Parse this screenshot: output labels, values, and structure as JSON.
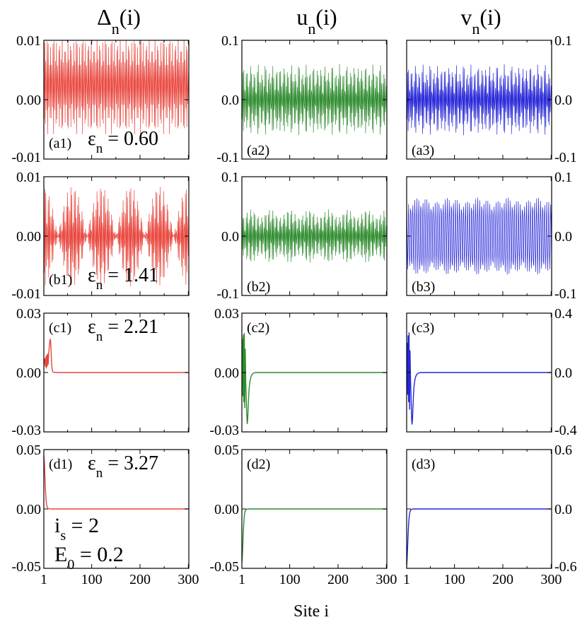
{
  "colors": {
    "delta": "#e8453c",
    "u": "#2e8b2e",
    "v": "#2525d8",
    "annotation": "#8b1a1a",
    "frame": "#000000"
  },
  "column_headers": [
    {
      "base": "Δ",
      "sub": "n",
      "tail": "(i)"
    },
    {
      "base": "u",
      "sub": "n",
      "tail": "(i)"
    },
    {
      "base": "v",
      "sub": "n",
      "tail": "(i)"
    }
  ],
  "xlabel": "Site i",
  "annotation": {
    "is_base": "i",
    "is_sub": "s",
    "is_tail": " = 2",
    "E0_base": "E",
    "E0_sub": "0",
    "E0_tail": " = 0.2"
  },
  "chart_data": [
    {
      "type": "line",
      "panel": "a1",
      "label": "(a1)",
      "eps": {
        "base": "ε",
        "sub": "n",
        "tail": " = 0.60"
      },
      "ylim": [
        -0.01,
        0.01
      ],
      "yticks": [
        "0.01",
        "0.00",
        "-0.01"
      ],
      "xlim": [
        1,
        301
      ],
      "xticks": [
        "1",
        "100",
        "200",
        "300"
      ],
      "tick_side": "left",
      "series": [
        {
          "color": "#e8453c",
          "kind": "stationary",
          "amplitude": 0.0085,
          "offset": 0.0025,
          "envelope_period": 15,
          "envelope_depth": 0.25,
          "period_sites": 2.4
        }
      ]
    },
    {
      "type": "line",
      "panel": "a2",
      "label": "(a2)",
      "ylim": [
        -0.1,
        0.1
      ],
      "yticks": [
        "0.1",
        "0.0",
        "-0.1"
      ],
      "xlim": [
        1,
        301
      ],
      "xticks": [
        "1",
        "100",
        "200",
        "300"
      ],
      "tick_side": "left",
      "series": [
        {
          "color": "#2e8b2e",
          "kind": "stationary",
          "amplitude": 0.06,
          "offset": 0.0,
          "envelope_period": 14,
          "envelope_depth": 0.3,
          "period_sites": 2.3
        }
      ]
    },
    {
      "type": "line",
      "panel": "a3",
      "label": "(a3)",
      "ylim": [
        -0.1,
        0.1
      ],
      "yticks": [
        "0.1",
        "0.0",
        "-0.1"
      ],
      "xlim": [
        1,
        301
      ],
      "xticks": [
        "1",
        "100",
        "200",
        "300"
      ],
      "tick_side": "right",
      "series": [
        {
          "color": "#2525d8",
          "kind": "stationary",
          "amplitude": 0.06,
          "offset": 0.0,
          "envelope_period": 14,
          "envelope_depth": 0.3,
          "period_sites": 2.3
        }
      ]
    },
    {
      "type": "line",
      "panel": "b1",
      "label": "(b1)",
      "eps": {
        "base": "ε",
        "sub": "n",
        "tail": " = 1.41"
      },
      "ylim": [
        -0.01,
        0.01
      ],
      "yticks": [
        "0.01",
        "0.00",
        "-0.01"
      ],
      "xlim": [
        1,
        301
      ],
      "xticks": [
        "1",
        "100",
        "200",
        "300"
      ],
      "tick_side": "left",
      "series": [
        {
          "color": "#e8453c",
          "kind": "beating",
          "amplitude": 0.0085,
          "offset": 0.0,
          "beat_period": 60,
          "period_sites": 2.3
        }
      ]
    },
    {
      "type": "line",
      "panel": "b2",
      "label": "(b2)",
      "ylim": [
        -0.1,
        0.1
      ],
      "yticks": [
        "0.1",
        "0.0",
        "-0.1"
      ],
      "xlim": [
        1,
        301
      ],
      "xticks": [
        "1",
        "100",
        "200",
        "300"
      ],
      "tick_side": "left",
      "series": [
        {
          "color": "#2e8b2e",
          "kind": "stationary",
          "amplitude": 0.045,
          "offset": 0.0,
          "envelope_period": 40,
          "envelope_depth": 0.3,
          "period_sites": 2.3
        }
      ]
    },
    {
      "type": "line",
      "panel": "b3",
      "label": "(b3)",
      "ylim": [
        -0.1,
        0.1
      ],
      "yticks": [
        "0.1",
        "0.0",
        "-0.1"
      ],
      "xlim": [
        1,
        301
      ],
      "xticks": [
        "1",
        "100",
        "200",
        "300"
      ],
      "tick_side": "right",
      "series": [
        {
          "color": "#2525d8",
          "kind": "stationary",
          "amplitude": 0.065,
          "offset": 0.0,
          "envelope_period": 60,
          "envelope_depth": 0.12,
          "period_sites": 4.2
        }
      ]
    },
    {
      "type": "line",
      "panel": "c1",
      "label": "(c1)",
      "eps": {
        "base": "ε",
        "sub": "n",
        "tail": " = 2.21"
      },
      "ylim": [
        -0.03,
        0.03
      ],
      "yticks": [
        "0.03",
        "0.00",
        "-0.03"
      ],
      "xlim": [
        1,
        301
      ],
      "xticks": [
        "1",
        "100",
        "200",
        "300"
      ],
      "tick_side": "left",
      "series": [
        {
          "color": "#e8453c",
          "kind": "points",
          "x": [
            1,
            3,
            4,
            5,
            6,
            7,
            8,
            9,
            10,
            11,
            12,
            13,
            14,
            15,
            16,
            17,
            18,
            19,
            20,
            22,
            25,
            30,
            301
          ],
          "y": [
            0.004,
            0.007,
            0.003,
            0.008,
            0.002,
            0.009,
            0.003,
            0.0095,
            0.004,
            0.01,
            0.012,
            0.015,
            0.017,
            0.016,
            0.011,
            0.005,
            0.002,
            0.0007,
            0.0003,
            0.0001,
            0.0,
            0.0,
            0.0
          ]
        }
      ]
    },
    {
      "type": "line",
      "panel": "c2",
      "label": "(c2)",
      "ylim": [
        -0.03,
        0.03
      ],
      "yticks": [
        "0.03",
        "0.00",
        "-0.03"
      ],
      "xlim": [
        1,
        301
      ],
      "xticks": [
        "1",
        "100",
        "200",
        "300"
      ],
      "tick_side": "left",
      "series": [
        {
          "color": "#2e8b2e",
          "kind": "points",
          "x": [
            1,
            2,
            3,
            4,
            5,
            6,
            7,
            8,
            9,
            10,
            11,
            12,
            13,
            14,
            15,
            16,
            18,
            20,
            22,
            25,
            30,
            40,
            301
          ],
          "y": [
            0.0,
            0.017,
            -0.012,
            0.019,
            -0.015,
            0.02,
            -0.018,
            0.012,
            -0.005,
            -0.012,
            -0.02,
            -0.026,
            -0.024,
            -0.018,
            -0.012,
            -0.008,
            -0.004,
            -0.002,
            -0.001,
            -0.0003,
            0.0,
            0.0,
            0.0
          ]
        }
      ]
    },
    {
      "type": "line",
      "panel": "c3",
      "label": "(c3)",
      "ylim": [
        -0.4,
        0.4
      ],
      "yticks": [
        "0.4",
        "0.0",
        "-0.4"
      ],
      "xlim": [
        1,
        301
      ],
      "xticks": [
        "1",
        "100",
        "200",
        "300"
      ],
      "tick_side": "right",
      "series": [
        {
          "color": "#2525d8",
          "kind": "points",
          "x": [
            1,
            2,
            3,
            4,
            5,
            6,
            7,
            8,
            9,
            10,
            11,
            12,
            13,
            14,
            15,
            16,
            18,
            20,
            22,
            25,
            30,
            40,
            301
          ],
          "y": [
            0.0,
            0.2,
            -0.15,
            0.25,
            -0.2,
            0.27,
            -0.25,
            0.15,
            -0.05,
            -0.15,
            -0.28,
            -0.35,
            -0.32,
            -0.24,
            -0.16,
            -0.1,
            -0.05,
            -0.025,
            -0.012,
            -0.004,
            0.0,
            0.0,
            0.0
          ]
        }
      ]
    },
    {
      "type": "line",
      "panel": "d1",
      "label": "(d1)",
      "eps": {
        "base": "ε",
        "sub": "n",
        "tail": " = 3.27"
      },
      "ylim": [
        -0.05,
        0.05
      ],
      "yticks": [
        "0.05",
        "0.00",
        "-0.05"
      ],
      "xlim": [
        1,
        301
      ],
      "xticks": [
        "1",
        "100",
        "200",
        "300"
      ],
      "tick_side": "left",
      "series": [
        {
          "color": "#e8453c",
          "kind": "points",
          "x": [
            1,
            2,
            3,
            4,
            5,
            6,
            7,
            8,
            10,
            12,
            15,
            20,
            301
          ],
          "y": [
            0.045,
            0.04,
            0.03,
            0.02,
            0.012,
            0.006,
            0.003,
            0.0015,
            0.0004,
            0.0001,
            0.0,
            0.0,
            0.0
          ]
        }
      ]
    },
    {
      "type": "line",
      "panel": "d2",
      "label": "(d2)",
      "ylim": [
        -0.05,
        0.05
      ],
      "yticks": [
        "0.05",
        "0.00",
        "-0.05"
      ],
      "xlim": [
        1,
        301
      ],
      "xticks": [
        "1",
        "100",
        "200",
        "300"
      ],
      "tick_side": "left",
      "series": [
        {
          "color": "#2e8b2e",
          "kind": "points",
          "x": [
            1,
            2,
            3,
            4,
            5,
            6,
            7,
            8,
            10,
            12,
            15,
            20,
            301
          ],
          "y": [
            -0.045,
            -0.04,
            -0.03,
            -0.02,
            -0.012,
            -0.006,
            -0.003,
            -0.0015,
            -0.0004,
            -0.0001,
            0.0,
            0.0,
            0.0
          ]
        }
      ]
    },
    {
      "type": "line",
      "panel": "d3",
      "label": "(d3)",
      "ylim": [
        -0.6,
        0.6
      ],
      "yticks": [
        "0.6",
        "0.0",
        "-0.6"
      ],
      "xlim": [
        1,
        301
      ],
      "xticks": [
        "1",
        "100",
        "200",
        "300"
      ],
      "tick_side": "right",
      "series": [
        {
          "color": "#2525d8",
          "kind": "points",
          "x": [
            1,
            2,
            3,
            4,
            5,
            6,
            7,
            8,
            10,
            12,
            15,
            20,
            301
          ],
          "y": [
            -0.58,
            -0.5,
            -0.38,
            -0.26,
            -0.16,
            -0.09,
            -0.05,
            -0.025,
            -0.007,
            -0.002,
            0.0,
            0.0,
            0.0
          ]
        }
      ]
    }
  ]
}
